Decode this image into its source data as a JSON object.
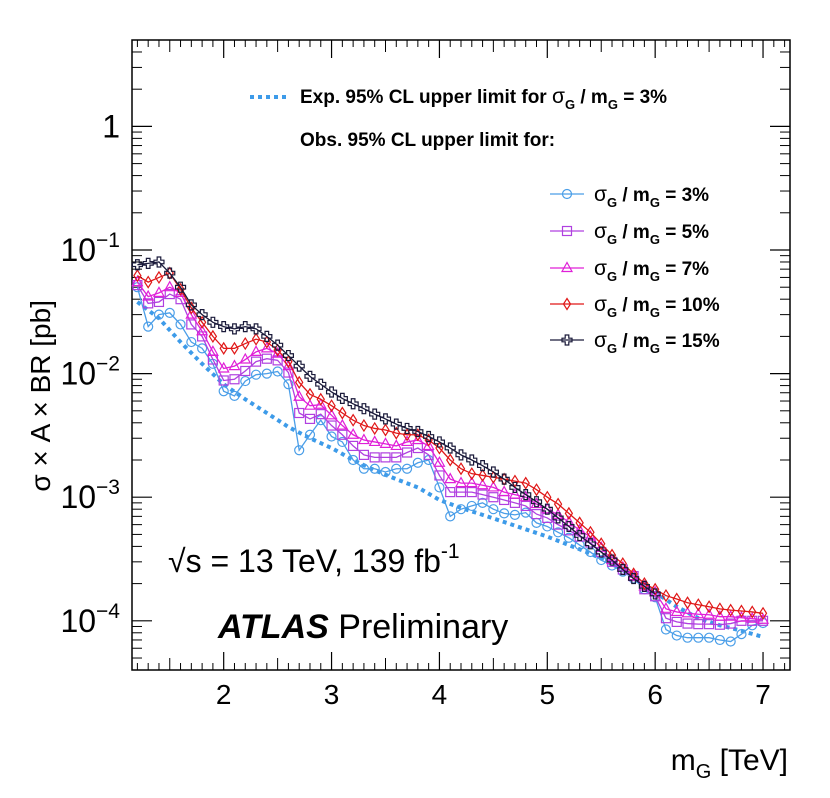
{
  "chart_data": {
    "type": "line",
    "xlabel": "m",
    "xlabel_sub": "G",
    "xlabel_unit": "[TeV]",
    "ylabel": "σ × A × BR [pb]",
    "y_scale": "log",
    "xlim": [
      1.15,
      7.25
    ],
    "ylim": [
      4e-05,
      5
    ],
    "x_ticks": [
      2,
      3,
      4,
      5,
      6,
      7
    ],
    "y_ticks": [
      {
        "value": 0.0001,
        "base": "10",
        "exp": "−4"
      },
      {
        "value": 0.001,
        "base": "10",
        "exp": "−3"
      },
      {
        "value": 0.01,
        "base": "10",
        "exp": "−2"
      },
      {
        "value": 0.1,
        "base": "10",
        "exp": "−1"
      },
      {
        "value": 1,
        "base": "1",
        "exp": ""
      }
    ],
    "legend": {
      "placement": "top-right",
      "exp_label": "Exp. 95% CL upper limit for",
      "exp_sigma": "σ",
      "exp_sub": "G",
      "exp_mid": " / m",
      "exp_sub2": "G",
      "exp_value": " = 3%",
      "obs_header": "Obs. 95% CL upper limit for:"
    },
    "annotation": {
      "energy_prefix": "√s = 13 TeV, 139 fb",
      "energy_sup": "-1",
      "atlas": "ATLAS",
      "preliminary": "Preliminary"
    },
    "series": [
      {
        "name": "σ_G / m_G = 3%",
        "label_mid": " / m",
        "label_value": " = 3%",
        "color": "#4a9ee8",
        "marker": "circle",
        "x": [
          1.2,
          1.3,
          1.4,
          1.5,
          1.6,
          1.7,
          1.8,
          1.9,
          2.0,
          2.1,
          2.2,
          2.3,
          2.4,
          2.5,
          2.6,
          2.7,
          2.8,
          2.9,
          3.0,
          3.1,
          3.2,
          3.3,
          3.4,
          3.5,
          3.6,
          3.7,
          3.8,
          3.9,
          4.0,
          4.1,
          4.2,
          4.3,
          4.4,
          4.5,
          4.6,
          4.7,
          4.8,
          4.9,
          5.0,
          5.1,
          5.2,
          5.3,
          5.4,
          5.5,
          5.6,
          5.7,
          5.8,
          5.9,
          6.0,
          6.1,
          6.2,
          6.3,
          6.4,
          6.5,
          6.6,
          6.7,
          6.8,
          6.9,
          7.0
        ],
        "y": [
          0.05,
          0.024,
          0.03,
          0.031,
          0.025,
          0.018,
          0.016,
          0.012,
          0.0072,
          0.0066,
          0.0087,
          0.0098,
          0.01,
          0.0104,
          0.0082,
          0.0024,
          0.0032,
          0.0042,
          0.0031,
          0.0028,
          0.002,
          0.0017,
          0.0017,
          0.0016,
          0.0017,
          0.0017,
          0.0019,
          0.002,
          0.0012,
          0.0007,
          0.0008,
          0.00085,
          0.0009,
          0.0008,
          0.00074,
          0.00072,
          0.00075,
          0.00062,
          0.00058,
          0.00052,
          0.00047,
          0.00041,
          0.00036,
          0.00031,
          0.00028,
          0.00025,
          0.00022,
          0.00018,
          0.000155,
          8.5e-05,
          7.6e-05,
          7.3e-05,
          7.3e-05,
          7.3e-05,
          7e-05,
          6.8e-05,
          7.8e-05,
          9.2e-05,
          9.6e-05
        ]
      },
      {
        "name": "σ_G / m_G = 5%",
        "label_mid": " / m",
        "label_value": " = 5%",
        "color": "#b040e0",
        "marker": "square",
        "x": [
          1.2,
          1.3,
          1.4,
          1.5,
          1.6,
          1.7,
          1.8,
          1.9,
          2.0,
          2.1,
          2.2,
          2.3,
          2.4,
          2.5,
          2.6,
          2.7,
          2.8,
          2.9,
          3.0,
          3.1,
          3.2,
          3.3,
          3.4,
          3.5,
          3.6,
          3.7,
          3.8,
          3.9,
          4.0,
          4.1,
          4.2,
          4.3,
          4.4,
          4.5,
          4.6,
          4.7,
          4.8,
          4.9,
          5.0,
          5.1,
          5.2,
          5.3,
          5.4,
          5.5,
          5.6,
          5.7,
          5.8,
          5.9,
          6.0,
          6.1,
          6.2,
          6.3,
          6.4,
          6.5,
          6.6,
          6.7,
          6.8,
          6.9,
          7.0
        ],
        "y": [
          0.052,
          0.037,
          0.038,
          0.044,
          0.04,
          0.025,
          0.02,
          0.013,
          0.0088,
          0.009,
          0.0105,
          0.0125,
          0.0132,
          0.0128,
          0.0102,
          0.0048,
          0.0043,
          0.0047,
          0.0038,
          0.0032,
          0.0026,
          0.0022,
          0.0021,
          0.0021,
          0.0021,
          0.0023,
          0.0025,
          0.0022,
          0.0015,
          0.0011,
          0.0011,
          0.0011,
          0.00105,
          0.001,
          0.00095,
          0.0009,
          0.00085,
          0.00073,
          0.00068,
          0.0006,
          0.00054,
          0.00048,
          0.00043,
          0.00036,
          0.0003,
          0.00026,
          0.00023,
          0.00018,
          0.000158,
          0.000105,
          9.8e-05,
          9.5e-05,
          9.4e-05,
          9.4e-05,
          9.3e-05,
          9.5e-05,
          0.0001,
          0.0001,
          0.0001
        ]
      },
      {
        "name": "σ_G / m_G = 7%",
        "label_mid": " / m",
        "label_value": " = 7%",
        "color": "#e020d8",
        "marker": "triangle",
        "x": [
          1.2,
          1.3,
          1.4,
          1.5,
          1.6,
          1.7,
          1.8,
          1.9,
          2.0,
          2.1,
          2.2,
          2.3,
          2.4,
          2.5,
          2.6,
          2.7,
          2.8,
          2.9,
          3.0,
          3.1,
          3.2,
          3.3,
          3.4,
          3.5,
          3.6,
          3.7,
          3.8,
          3.9,
          4.0,
          4.1,
          4.2,
          4.3,
          4.4,
          4.5,
          4.6,
          4.7,
          4.8,
          4.9,
          5.0,
          5.1,
          5.2,
          5.3,
          5.4,
          5.5,
          5.6,
          5.7,
          5.8,
          5.9,
          6.0,
          6.1,
          6.2,
          6.3,
          6.4,
          6.5,
          6.6,
          6.7,
          6.8,
          6.9,
          7.0
        ],
        "y": [
          0.055,
          0.042,
          0.045,
          0.05,
          0.045,
          0.03,
          0.022,
          0.015,
          0.011,
          0.0115,
          0.013,
          0.015,
          0.016,
          0.0145,
          0.0115,
          0.0065,
          0.0055,
          0.0056,
          0.0046,
          0.0038,
          0.0032,
          0.0029,
          0.0028,
          0.0027,
          0.0026,
          0.0028,
          0.0029,
          0.0026,
          0.0019,
          0.0014,
          0.0013,
          0.0013,
          0.00125,
          0.0012,
          0.0011,
          0.00105,
          0.001,
          0.00088,
          0.0008,
          0.00072,
          0.00063,
          0.00054,
          0.00048,
          0.00039,
          0.00031,
          0.00027,
          0.00023,
          0.00019,
          0.00017,
          0.000125,
          0.000118,
          0.000115,
          0.000113,
          0.000112,
          0.000108,
          0.000108,
          0.000106,
          0.000104,
          0.000102
        ]
      },
      {
        "name": "σ_G / m_G = 10%",
        "label_mid": " / m",
        "label_value": " = 10%",
        "color": "#e01818",
        "marker": "diamond",
        "x": [
          1.2,
          1.3,
          1.4,
          1.5,
          1.6,
          1.7,
          1.8,
          1.9,
          2.0,
          2.1,
          2.2,
          2.3,
          2.4,
          2.5,
          2.6,
          2.7,
          2.8,
          2.9,
          3.0,
          3.1,
          3.2,
          3.3,
          3.4,
          3.5,
          3.6,
          3.7,
          3.8,
          3.9,
          4.0,
          4.1,
          4.2,
          4.3,
          4.4,
          4.5,
          4.6,
          4.7,
          4.8,
          4.9,
          5.0,
          5.1,
          5.2,
          5.3,
          5.4,
          5.5,
          5.6,
          5.7,
          5.8,
          5.9,
          6.0,
          6.1,
          6.2,
          6.3,
          6.4,
          6.5,
          6.6,
          6.7,
          6.8,
          6.9,
          7.0
        ],
        "y": [
          0.062,
          0.055,
          0.06,
          0.065,
          0.048,
          0.034,
          0.026,
          0.02,
          0.016,
          0.016,
          0.0175,
          0.019,
          0.018,
          0.0155,
          0.0125,
          0.0085,
          0.0068,
          0.0062,
          0.0055,
          0.0048,
          0.0042,
          0.0038,
          0.0036,
          0.0035,
          0.0033,
          0.0032,
          0.0032,
          0.0029,
          0.0025,
          0.002,
          0.0017,
          0.00155,
          0.0015,
          0.00145,
          0.0014,
          0.00135,
          0.0013,
          0.00115,
          0.001,
          0.00088,
          0.00074,
          0.00062,
          0.00052,
          0.00042,
          0.00034,
          0.00029,
          0.00024,
          0.0002,
          0.00018,
          0.00016,
          0.00015,
          0.00014,
          0.000135,
          0.00013,
          0.000125,
          0.000122,
          0.00012,
          0.000118,
          0.000115
        ]
      },
      {
        "name": "σ_G / m_G = 15%",
        "label_mid": " / m",
        "label_value": " = 15%",
        "color": "#1a1a3a",
        "marker": "cross",
        "x": [
          1.2,
          1.3,
          1.4,
          1.5,
          1.6,
          1.7,
          1.8,
          1.9,
          2.0,
          2.1,
          2.2,
          2.3,
          2.4,
          2.5,
          2.6,
          2.7,
          2.8,
          2.9,
          3.0,
          3.1,
          3.2,
          3.3,
          3.4,
          3.5,
          3.6,
          3.7,
          3.8,
          3.9,
          4.0,
          4.1,
          4.2,
          4.3,
          4.4,
          4.5,
          4.6,
          4.7,
          4.8,
          4.9,
          5.0,
          5.1,
          5.2,
          5.3,
          5.4,
          5.5,
          5.6,
          5.7,
          5.8,
          5.9,
          6.0
        ],
        "y": [
          0.076,
          0.078,
          0.08,
          0.065,
          0.05,
          0.036,
          0.03,
          0.026,
          0.024,
          0.023,
          0.024,
          0.023,
          0.02,
          0.017,
          0.014,
          0.0115,
          0.0095,
          0.0082,
          0.0071,
          0.0063,
          0.0057,
          0.0052,
          0.0047,
          0.0043,
          0.0039,
          0.0036,
          0.0034,
          0.0031,
          0.0028,
          0.0025,
          0.0022,
          0.002,
          0.0018,
          0.0016,
          0.0014,
          0.0012,
          0.00105,
          0.00092,
          0.0008,
          0.00068,
          0.00058,
          0.00049,
          0.00042,
          0.00036,
          0.00031,
          0.00026,
          0.00022,
          0.00019,
          0.000165
        ]
      }
    ],
    "expected": {
      "name": "Exp. 95% CL upper limit for σG / mG = 3%",
      "color": "#3d9be9",
      "x": [
        1.2,
        1.4,
        1.6,
        1.8,
        2.0,
        2.2,
        2.4,
        2.6,
        2.8,
        3.0,
        3.2,
        3.4,
        3.6,
        3.8,
        4.0,
        4.2,
        4.4,
        4.6,
        4.8,
        5.0,
        5.2,
        5.4,
        5.6,
        5.8,
        6.0,
        6.2,
        6.4,
        6.6,
        6.8,
        7.0
      ],
      "y": [
        0.038,
        0.028,
        0.018,
        0.012,
        0.0082,
        0.0062,
        0.0048,
        0.0037,
        0.003,
        0.0025,
        0.002,
        0.00165,
        0.0014,
        0.0012,
        0.00095,
        0.00082,
        0.00072,
        0.00063,
        0.00055,
        0.00048,
        0.00041,
        0.00035,
        0.00029,
        0.00023,
        0.00017,
        0.00013,
        0.000105,
        9.2e-05,
        8.3e-05,
        7.4e-05
      ]
    }
  }
}
